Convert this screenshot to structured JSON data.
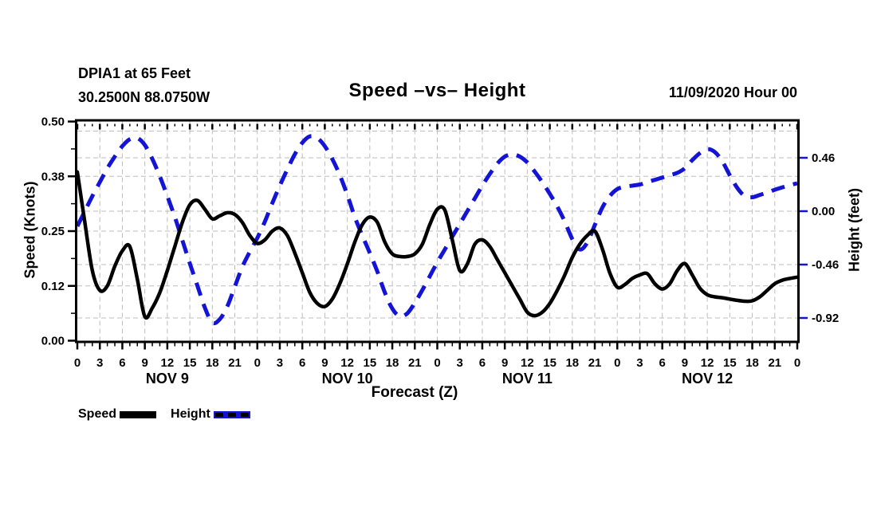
{
  "header": {
    "station_name": "DPIA1 at 65 Feet",
    "station_coords": "30.2500N 88.0750W",
    "title": "Speed –vs– Height",
    "date_stamp": "11/09/2020 Hour 00"
  },
  "axes": {
    "left_label": "Speed (Knots)",
    "right_label": "Height (feet)",
    "x_label": "Forecast (Z)",
    "left_ticks": [
      {
        "label": "0.50",
        "value": 0.5
      },
      {
        "label": "0.38",
        "value": 0.375
      },
      {
        "label": "0.25",
        "value": 0.25
      },
      {
        "label": "0.12",
        "value": 0.125
      },
      {
        "label": "0.00",
        "value": 0.0
      }
    ],
    "right_ticks": [
      {
        "label": "0.46",
        "value": 0.46
      },
      {
        "label": "0.00",
        "value": 0.0
      },
      {
        "label": "-0.46",
        "value": -0.46
      },
      {
        "label": "-0.92",
        "value": -0.92
      }
    ],
    "x_major_step_hours": 3,
    "x_minor_step_hours": 1,
    "day_labels": [
      {
        "label": "NOV 9",
        "hour": 12
      },
      {
        "label": "NOV 10",
        "hour": 36
      },
      {
        "label": "NOV 11",
        "hour": 60
      },
      {
        "label": "NOV 12",
        "hour": 84
      }
    ]
  },
  "legend": [
    {
      "label": "Speed",
      "style": "solid",
      "color": "#000000"
    },
    {
      "label": "Height",
      "style": "dashed",
      "color": "#1414d6"
    }
  ],
  "colors": {
    "speed": "#000000",
    "height": "#1414d6",
    "grid": "#bdbdbd",
    "axis": "#000000",
    "right_tick": "#1414d6"
  },
  "chart_data": {
    "type": "line",
    "title": "Speed -vs- Height",
    "xlabel": "Forecast (Z)",
    "x_start_hour": 0,
    "x_end_hour": 96,
    "x_step_hours": 1,
    "x_days": [
      "NOV 9",
      "NOV 10",
      "NOV 11",
      "NOV 12"
    ],
    "left_axis": {
      "label": "Speed (Knots)",
      "range": [
        0.0,
        0.5
      ],
      "tick_values": [
        0.0,
        0.125,
        0.25,
        0.375,
        0.5
      ]
    },
    "right_axis": {
      "label": "Height (feet)",
      "tick_values": [
        0.46,
        0.0,
        -0.46,
        -0.92
      ]
    },
    "grid": {
      "vertical_every_hours": 3,
      "horizontal_speed_lines": [
        0.375,
        0.25,
        0.125
      ],
      "horizontal_height_lines": [
        0.69,
        0.46,
        0.0,
        -0.46,
        -0.92
      ]
    },
    "legend_position": "bottom-left",
    "series": [
      {
        "name": "Speed",
        "axis": "left",
        "units": "knots",
        "color": "#000000",
        "line_style": "solid",
        "values": [
          0.385,
          0.27,
          0.16,
          0.115,
          0.125,
          0.17,
          0.205,
          0.215,
          0.14,
          0.055,
          0.075,
          0.11,
          0.16,
          0.215,
          0.27,
          0.31,
          0.32,
          0.3,
          0.278,
          0.285,
          0.292,
          0.288,
          0.27,
          0.24,
          0.222,
          0.23,
          0.25,
          0.257,
          0.24,
          0.2,
          0.155,
          0.11,
          0.085,
          0.078,
          0.095,
          0.13,
          0.175,
          0.225,
          0.265,
          0.282,
          0.27,
          0.225,
          0.198,
          0.192,
          0.192,
          0.198,
          0.22,
          0.265,
          0.3,
          0.298,
          0.23,
          0.16,
          0.175,
          0.22,
          0.23,
          0.215,
          0.185,
          0.155,
          0.125,
          0.095,
          0.065,
          0.057,
          0.065,
          0.085,
          0.115,
          0.15,
          0.19,
          0.22,
          0.24,
          0.25,
          0.21,
          0.155,
          0.122,
          0.128,
          0.142,
          0.15,
          0.153,
          0.13,
          0.118,
          0.13,
          0.16,
          0.176,
          0.15,
          0.12,
          0.105,
          0.1,
          0.098,
          0.095,
          0.092,
          0.09,
          0.091,
          0.1,
          0.115,
          0.13,
          0.138,
          0.142,
          0.145
        ]
      },
      {
        "name": "Height",
        "axis": "right",
        "units": "feet",
        "color": "#1414d6",
        "line_style": "dashed",
        "values": [
          -0.13,
          0.0,
          0.13,
          0.25,
          0.37,
          0.47,
          0.56,
          0.62,
          0.63,
          0.57,
          0.45,
          0.3,
          0.13,
          -0.05,
          -0.25,
          -0.45,
          -0.64,
          -0.83,
          -0.96,
          -0.93,
          -0.82,
          -0.65,
          -0.48,
          -0.35,
          -0.23,
          -0.09,
          0.07,
          0.22,
          0.36,
          0.49,
          0.59,
          0.645,
          0.63,
          0.56,
          0.45,
          0.31,
          0.14,
          -0.05,
          -0.21,
          -0.36,
          -0.52,
          -0.7,
          -0.84,
          -0.905,
          -0.88,
          -0.79,
          -0.68,
          -0.56,
          -0.44,
          -0.33,
          -0.22,
          -0.11,
          0.0,
          0.11,
          0.22,
          0.32,
          0.41,
          0.47,
          0.49,
          0.47,
          0.42,
          0.34,
          0.25,
          0.15,
          0.04,
          -0.09,
          -0.24,
          -0.33,
          -0.27,
          -0.12,
          0.03,
          0.13,
          0.19,
          0.21,
          0.22,
          0.23,
          0.25,
          0.27,
          0.29,
          0.31,
          0.33,
          0.37,
          0.44,
          0.5,
          0.535,
          0.51,
          0.43,
          0.31,
          0.2,
          0.13,
          0.12,
          0.14,
          0.16,
          0.185,
          0.205,
          0.225,
          0.24
        ]
      }
    ]
  }
}
